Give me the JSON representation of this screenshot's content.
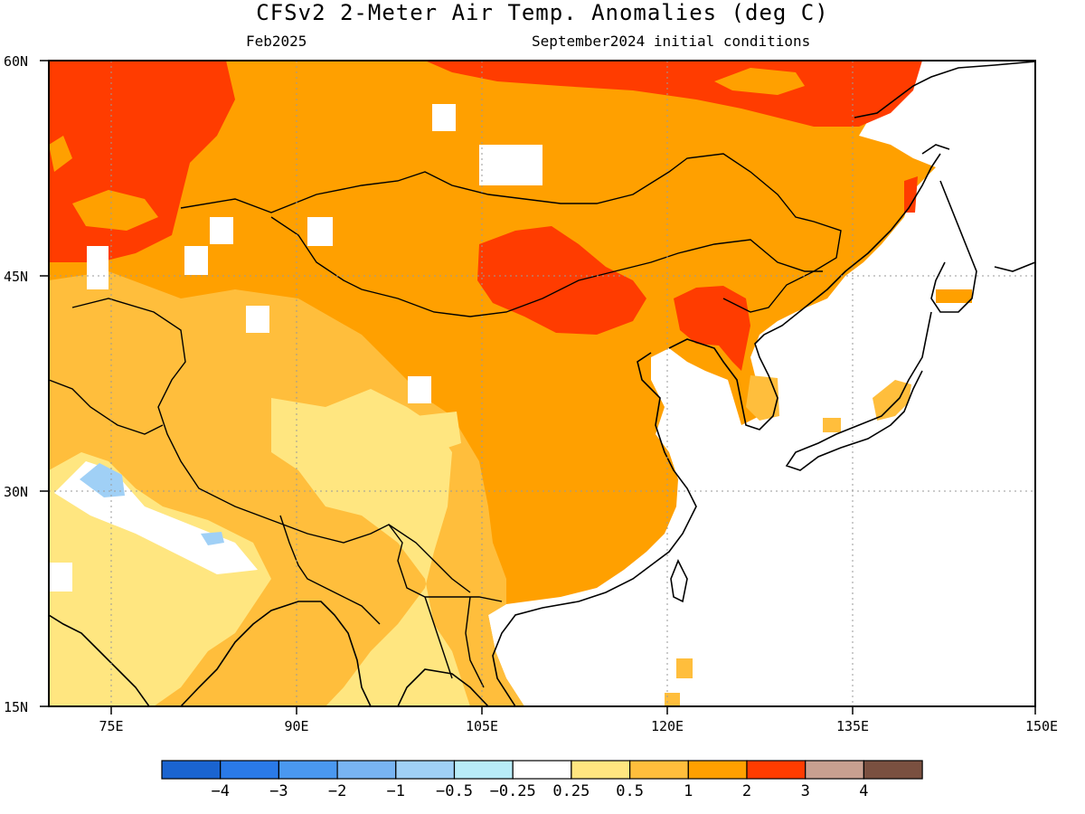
{
  "title": "CFSv2 2-Meter Air Temp. Anomalies (deg C)",
  "left_subtitle": "Feb2025",
  "right_subtitle": "September2024 initial conditions",
  "lat_labels": [
    "60N",
    "45N",
    "30N",
    "15N"
  ],
  "lon_labels": [
    "75E",
    "90E",
    "105E",
    "120E",
    "135E",
    "150E"
  ],
  "colorbar": {
    "colors": [
      "#1a64d0",
      "#2a7ae8",
      "#4a98f0",
      "#78b4f2",
      "#a0d0f6",
      "#b8ecf8",
      "#ffffff",
      "#ffe680",
      "#ffbe3c",
      "#ffa000",
      "#ff3c00",
      "#c8a090",
      "#7a5040"
    ],
    "labels": [
      "-4",
      "-3",
      "-2",
      "-1",
      "-0.5",
      "-0.25",
      "0.25",
      "0.5",
      "1",
      "2",
      "3",
      "4"
    ]
  },
  "map": {
    "lon_range": [
      70,
      150
    ],
    "lat_range": [
      15,
      60
    ],
    "land_color": "#ffa000",
    "ocean_color": "#ffffff"
  }
}
